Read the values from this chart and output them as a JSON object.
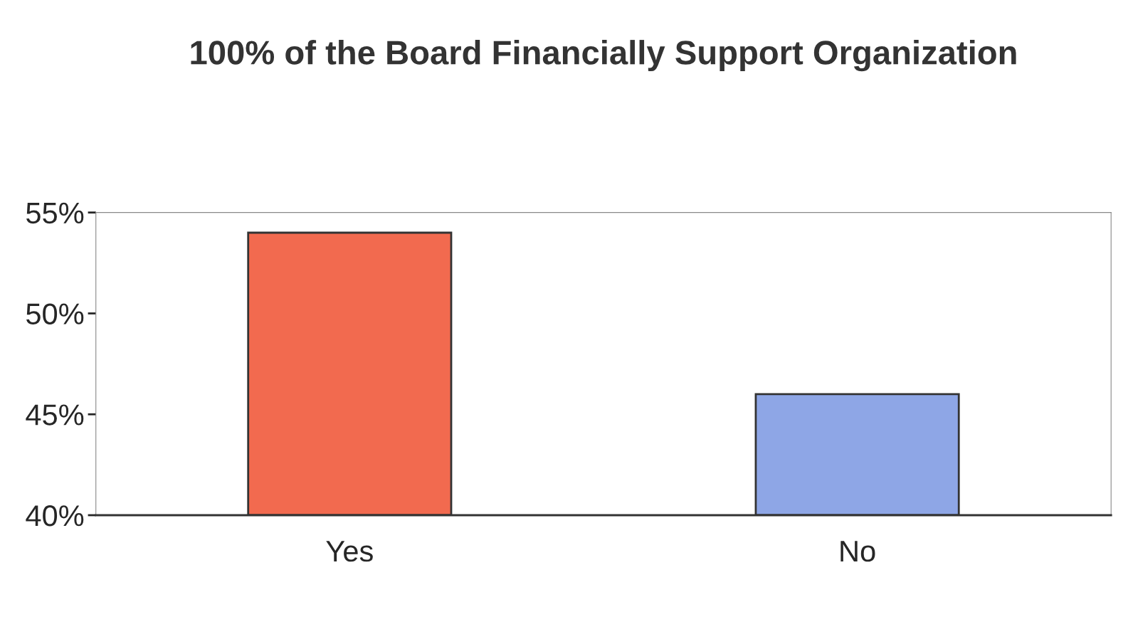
{
  "chart_data": {
    "type": "bar",
    "title": "100% of the Board Financially Support Organization",
    "categories": [
      "Yes",
      "No"
    ],
    "values": [
      54,
      46
    ],
    "colors": [
      "#f26a4f",
      "#8ea6e6"
    ],
    "ylim": [
      40,
      55
    ],
    "yticks": [
      {
        "value": 40,
        "label": "40%"
      },
      {
        "value": 45,
        "label": "45%"
      },
      {
        "value": 50,
        "label": "50%"
      },
      {
        "value": 55,
        "label": "55%"
      }
    ],
    "grid": false
  }
}
